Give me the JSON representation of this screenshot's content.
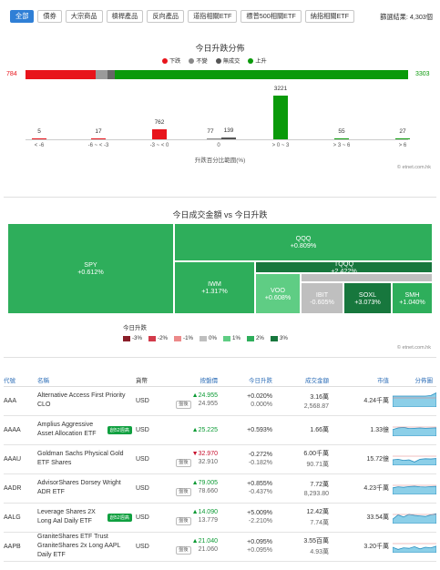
{
  "filters": {
    "chips": [
      "全部",
      "債券",
      "大宗商品",
      "槓桿產品",
      "反向產品",
      "道指相關ETF",
      "標普500相關ETF",
      "納指相關ETF"
    ],
    "result_text": "篩選結果: 4,303個"
  },
  "dist": {
    "title": "今日升跌分佈",
    "legend": [
      {
        "label": "下跌",
        "color": "#e8141b"
      },
      {
        "label": "不變",
        "color": "#888888"
      },
      {
        "label": "無成交",
        "color": "#555555"
      },
      {
        "label": "上升",
        "color": "#0a9a0a"
      }
    ],
    "left_total": "784",
    "right_total": "3303",
    "stack": [
      {
        "value": 784,
        "color": "#e8141b"
      },
      {
        "value": 139,
        "color": "#9a9a9a"
      },
      {
        "value": 77,
        "color": "#666666"
      },
      {
        "value": 3303,
        "color": "#0a9a0a"
      }
    ],
    "axis_label": "升跌百分比範圍(%)",
    "credit": "© etnet.com.hk"
  },
  "chart_data": {
    "type": "bar",
    "xlabel": "升跌百分比範圍(%)",
    "categories": [
      "< -6",
      "-6 ~ < -3",
      "-3 ~ < 0",
      "0",
      "> 0 ~ 3",
      "> 3 ~ 6",
      "> 6"
    ],
    "series": [
      {
        "values": [
          5,
          17,
          762,
          77,
          3221,
          55,
          27
        ]
      }
    ],
    "extra": {
      "unchanged_no_trade_at_0": 139
    }
  },
  "treemap": {
    "title": "今日成交金額 vs 今日升跌",
    "legend_title": "今日升跌",
    "scale": [
      {
        "label": "-3%",
        "color": "#8b1f2a"
      },
      {
        "label": "-2%",
        "color": "#d23a4a"
      },
      {
        "label": "-1%",
        "color": "#ec8a8a"
      },
      {
        "label": "0%",
        "color": "#bfbfbf"
      },
      {
        "label": "1%",
        "color": "#5fcd84"
      },
      {
        "label": "2%",
        "color": "#2eae5b"
      },
      {
        "label": "3%",
        "color": "#17773d"
      }
    ],
    "cells": [
      {
        "name": "SPY",
        "change": "+0.612%"
      },
      {
        "name": "QQQ",
        "change": "+0.809%"
      },
      {
        "name": "TQQQ",
        "change": "+2.422%"
      },
      {
        "name": "IWM",
        "change": "+1.317%"
      },
      {
        "name": "VOO",
        "change": "+0.608%"
      },
      {
        "name": "IBIT",
        "change": "-0.605%"
      },
      {
        "name": "SOXL",
        "change": "+3.073%"
      },
      {
        "name": "SMH",
        "change": "+1.040%"
      }
    ],
    "credit": "© etnet.com.hk"
  },
  "table": {
    "headers": [
      "代號",
      "名稱",
      "貨幣",
      "按盤價",
      "今日升跌",
      "成交金額",
      "市值",
      "分佈圖"
    ],
    "rows": [
      {
        "code": "AAA",
        "name": "Alternative Access First Priority CLO",
        "badge": "",
        "currency": "USD",
        "price": "24.955",
        "price_dir": "up",
        "sub_label": "盤後",
        "sub_price": "24.955",
        "chg": "+0.020%",
        "chg_sub": "0.000%",
        "turnover": "3.16萬",
        "turnover_sub": "2,568.87",
        "mcap": "4.24千萬"
      },
      {
        "code": "AAAA",
        "name": "Amplius Aggressive Asset Allocation ETF",
        "badge": "創52週高",
        "currency": "USD",
        "price": "25.225",
        "price_dir": "up",
        "sub_label": "",
        "sub_price": "",
        "chg": "+0.593%",
        "chg_sub": "",
        "turnover": "1.66萬",
        "turnover_sub": "",
        "mcap": "1.33億"
      },
      {
        "code": "AAAU",
        "name": "Goldman Sachs Physical Gold ETF Shares",
        "badge": "",
        "currency": "USD",
        "price": "32.970",
        "price_dir": "down",
        "sub_label": "盤後",
        "sub_price": "32.910",
        "chg": "-0.272%",
        "chg_sub": "-0.182%",
        "turnover": "6.00千萬",
        "turnover_sub": "90.71萬",
        "mcap": "15.72億"
      },
      {
        "code": "AADR",
        "name": "AdvisorShares Dorsey Wright ADR ETF",
        "badge": "",
        "currency": "USD",
        "price": "79.005",
        "price_dir": "up",
        "sub_label": "盤後",
        "sub_price": "78.660",
        "chg": "+0.855%",
        "chg_sub": "-0.437%",
        "turnover": "7.72萬",
        "turnover_sub": "8,293.80",
        "mcap": "4.23千萬"
      },
      {
        "code": "AALG",
        "name": "Leverage Shares 2X Long Aal Daily ETF",
        "badge": "創52週高",
        "currency": "USD",
        "price": "14.090",
        "price_dir": "up",
        "sub_label": "盤後",
        "sub_price": "13.779",
        "chg": "+5.009%",
        "chg_sub": "-2.210%",
        "turnover": "12.42萬",
        "turnover_sub": "7.74萬",
        "mcap": "33.54萬"
      },
      {
        "code": "AAPB",
        "name": "GraniteShares ETF Trust GraniteShares 2x Long AAPL Daily ETF",
        "badge": "",
        "currency": "USD",
        "price": "21.040",
        "price_dir": "up",
        "sub_label": "盤後",
        "sub_price": "21.060",
        "chg": "+0.095%",
        "chg_sub": "+0.095%",
        "turnover": "3.55百萬",
        "turnover_sub": "4.93萬",
        "mcap": "3.20千萬"
      }
    ]
  }
}
